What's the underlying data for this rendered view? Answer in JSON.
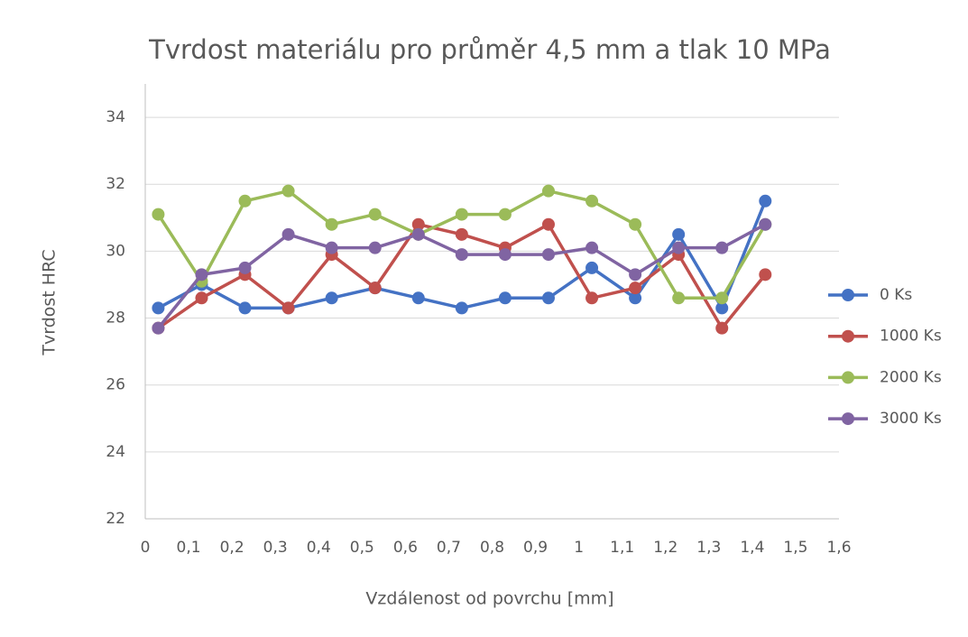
{
  "chart_data": {
    "type": "line",
    "title": "Tvrdost materiálu pro průměr 4,5 mm a tlak 10 MPa",
    "xlabel": "Vzdálenost od povrchu [mm]",
    "ylabel": "Tvrdost HRC",
    "x": [
      0.03,
      0.13,
      0.23,
      0.33,
      0.43,
      0.53,
      0.63,
      0.73,
      0.83,
      0.93,
      1.03,
      1.13,
      1.23,
      1.33,
      1.43
    ],
    "series": [
      {
        "name": "0 Ks",
        "color": "#4472c4",
        "values": [
          28.3,
          29.0,
          28.3,
          28.3,
          28.6,
          28.9,
          28.6,
          28.3,
          28.6,
          28.6,
          29.5,
          28.6,
          30.5,
          28.3,
          31.5
        ]
      },
      {
        "name": "1000 Ks",
        "color": "#c0504d",
        "values": [
          27.7,
          28.6,
          29.3,
          28.3,
          29.9,
          28.9,
          30.8,
          30.5,
          30.1,
          30.8,
          28.6,
          28.9,
          29.9,
          27.7,
          29.3
        ]
      },
      {
        "name": "2000 Ks",
        "color": "#9bbb59",
        "values": [
          31.1,
          29.1,
          31.5,
          31.8,
          30.8,
          31.1,
          30.5,
          31.1,
          31.1,
          31.8,
          31.5,
          30.8,
          28.6,
          28.6,
          30.8
        ]
      },
      {
        "name": "3000 Ks",
        "color": "#8064a2",
        "values": [
          27.7,
          29.3,
          29.5,
          30.5,
          30.1,
          30.1,
          30.5,
          29.9,
          29.9,
          29.9,
          30.1,
          29.3,
          30.1,
          30.1,
          30.8
        ]
      }
    ],
    "xlim": [
      0,
      1.6
    ],
    "xticks": [
      0,
      {
        "value": 0.1,
        "label": "0,1"
      },
      {
        "value": 0.2,
        "label": "0,2"
      },
      {
        "value": 0.3,
        "label": "0,3"
      },
      {
        "value": 0.4,
        "label": "0,4"
      },
      {
        "value": 0.5,
        "label": "0,5"
      },
      {
        "value": 0.6,
        "label": "0,6"
      },
      {
        "value": 0.7,
        "label": "0,7"
      },
      {
        "value": 0.8,
        "label": "0,8"
      },
      {
        "value": 0.9,
        "label": "0,9"
      },
      1,
      {
        "value": 1.1,
        "label": "1,1"
      },
      {
        "value": 1.2,
        "label": "1,2"
      },
      {
        "value": 1.3,
        "label": "1,3"
      },
      {
        "value": 1.4,
        "label": "1,4"
      },
      {
        "value": 1.5,
        "label": "1,5"
      },
      {
        "value": 1.6,
        "label": "1,6"
      }
    ],
    "ylim": [
      22,
      35
    ],
    "yticks": [
      22,
      24,
      26,
      28,
      30,
      32,
      34
    ],
    "grid": true,
    "legend": "right"
  }
}
